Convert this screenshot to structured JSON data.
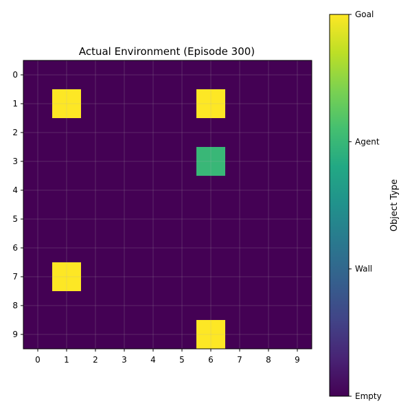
{
  "chart_data": {
    "type": "heatmap",
    "title": "Actual Environment (Episode 300)",
    "x_ticks": [
      "0",
      "1",
      "2",
      "3",
      "4",
      "5",
      "6",
      "7",
      "8",
      "9"
    ],
    "y_ticks": [
      "0",
      "1",
      "2",
      "3",
      "4",
      "5",
      "6",
      "7",
      "8",
      "9"
    ],
    "grid": true,
    "values": [
      [
        0,
        0,
        0,
        0,
        0,
        0,
        0,
        0,
        0,
        0
      ],
      [
        0,
        3,
        0,
        0,
        0,
        0,
        3,
        0,
        0,
        0
      ],
      [
        0,
        0,
        0,
        0,
        0,
        0,
        0,
        0,
        0,
        0
      ],
      [
        0,
        0,
        0,
        0,
        0,
        0,
        2,
        0,
        0,
        0
      ],
      [
        0,
        0,
        0,
        0,
        0,
        0,
        0,
        0,
        0,
        0
      ],
      [
        0,
        0,
        0,
        0,
        0,
        0,
        0,
        0,
        0,
        0
      ],
      [
        0,
        0,
        0,
        0,
        0,
        0,
        0,
        0,
        0,
        0
      ],
      [
        0,
        3,
        0,
        0,
        0,
        0,
        0,
        0,
        0,
        0
      ],
      [
        0,
        0,
        0,
        0,
        0,
        0,
        0,
        0,
        0,
        0
      ],
      [
        0,
        0,
        0,
        0,
        0,
        0,
        3,
        0,
        0,
        0
      ]
    ],
    "value_range": [
      0,
      3
    ],
    "colormap": "viridis",
    "colorbar": {
      "label": "Object Type",
      "ticks": [
        {
          "value": 0,
          "label": "Empty"
        },
        {
          "value": 1,
          "label": "Wall"
        },
        {
          "value": 2,
          "label": "Agent"
        },
        {
          "value": 3,
          "label": "Goal"
        }
      ]
    }
  }
}
